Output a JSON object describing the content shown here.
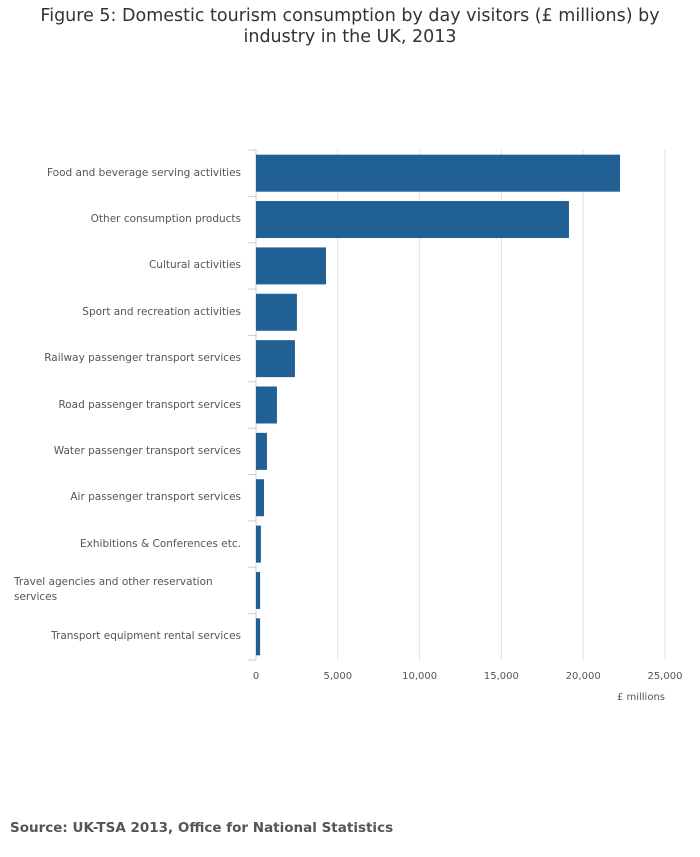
{
  "chart_data": {
    "type": "bar",
    "orientation": "horizontal",
    "title": "Figure 5: Domestic tourism consumption by day visitors (£ millions) by industry in the UK, 2013",
    "categories": [
      "Food and beverage serving activities",
      "Other consumption products",
      "Cultural activities",
      "Sport and recreation activities",
      "Railway passenger transport services",
      "Road passenger transport services",
      "Water passenger transport services",
      "Air passenger transport services",
      "Exhibitions & Conferences etc.",
      "Travel agencies and other reservation services",
      "Transport equipment rental services"
    ],
    "values": [
      22250,
      19130,
      4280,
      2500,
      2380,
      1280,
      670,
      490,
      300,
      250,
      250
    ],
    "color": "#206095",
    "xlim": [
      0,
      25000
    ],
    "xticks": [
      0,
      {
        "value": 5000,
        "label": "5,000"
      },
      {
        "value": 10000,
        "label": "10,000"
      },
      {
        "value": 15000,
        "label": "15,000"
      },
      {
        "value": 20000,
        "label": "20,000"
      },
      {
        "value": 25000,
        "label": "25,000"
      }
    ],
    "x_label": "£ millions",
    "grid": true,
    "source": "Source: UK-TSA 2013, Office for National Statistics"
  }
}
